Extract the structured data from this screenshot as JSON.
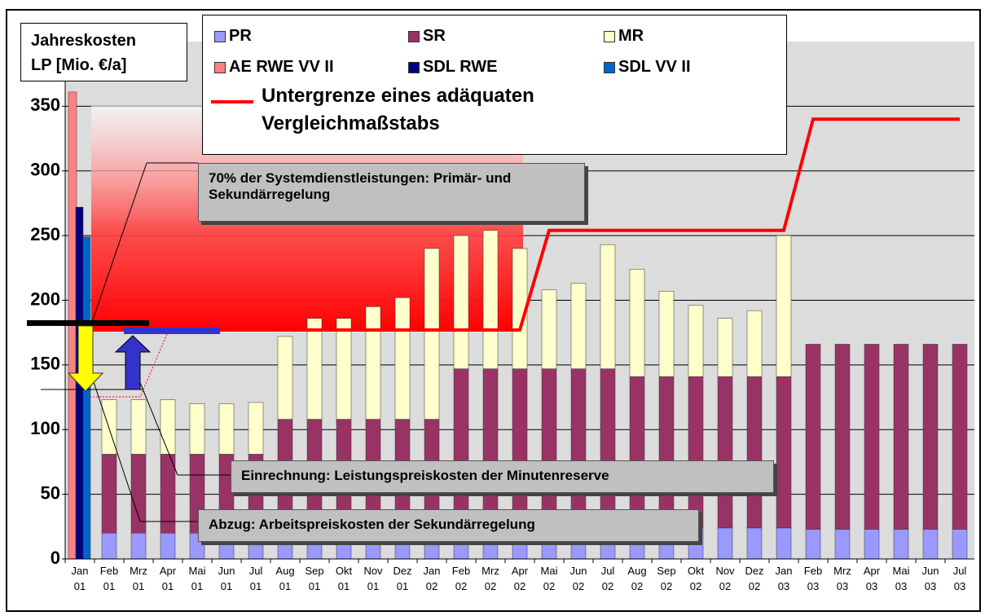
{
  "chart_data": {
    "type": "bar",
    "y_label_lines": [
      "Jahreskosten",
      "LP [Mio. €/a]"
    ],
    "categories": [
      "Jan 01",
      "Feb 01",
      "Mrz 01",
      "Apr 01",
      "Mai 01",
      "Jun 01",
      "Jul 01",
      "Aug 01",
      "Sep 01",
      "Okt 01",
      "Nov 01",
      "Dez 01",
      "Jan 02",
      "Feb 02",
      "Mrz 02",
      "Apr 02",
      "Mai 02",
      "Jun 02",
      "Jul 02",
      "Aug 02",
      "Sep 02",
      "Okt 02",
      "Nov 02",
      "Dez 02",
      "Jan 03",
      "Feb 03",
      "Mrz 03",
      "Apr 03",
      "Mai 03",
      "Jun 03",
      "Jul 03"
    ],
    "series": [
      {
        "name": "PR",
        "color": "#9999ff",
        "values": [
          null,
          20,
          20,
          20,
          20,
          20,
          20,
          20,
          20,
          20,
          20,
          20,
          20,
          20,
          20,
          20,
          20,
          20,
          20,
          20,
          20,
          24,
          24,
          24,
          24,
          23,
          23,
          23,
          23,
          23,
          23
        ]
      },
      {
        "name": "SR",
        "color": "#993366",
        "values": [
          null,
          61,
          61,
          61,
          61,
          61,
          61,
          88,
          88,
          88,
          88,
          88,
          88,
          127,
          127,
          127,
          127,
          127,
          127,
          121,
          121,
          117,
          117,
          117,
          117,
          143,
          143,
          143,
          143,
          143,
          143
        ]
      },
      {
        "name": "MR",
        "color": "#ffffcc",
        "values": [
          null,
          42,
          42,
          42,
          39,
          39,
          40,
          64,
          78,
          78,
          87,
          94,
          132,
          103,
          107,
          93,
          61,
          66,
          96,
          83,
          66,
          55,
          45,
          51,
          109,
          null,
          null,
          null,
          null,
          null,
          null
        ]
      },
      {
        "name": "AE RWE VV II",
        "color": "#ff8080",
        "values": [
          361,
          null,
          null,
          null,
          null,
          null,
          null,
          null,
          null,
          null,
          null,
          null,
          null,
          null,
          null,
          null,
          null,
          null,
          null,
          null,
          null,
          null,
          null,
          null,
          null,
          null,
          null,
          null,
          null,
          null,
          null
        ]
      },
      {
        "name": "SDL RWE",
        "color": "#000080",
        "values": [
          272,
          null,
          null,
          null,
          null,
          null,
          null,
          null,
          null,
          null,
          null,
          null,
          null,
          null,
          null,
          null,
          null,
          null,
          null,
          null,
          null,
          null,
          null,
          null,
          null,
          null,
          null,
          null,
          null,
          null,
          null
        ]
      },
      {
        "name": "SDL VV II",
        "color": "#0066cc",
        "values": [
          249,
          null,
          null,
          null,
          null,
          null,
          null,
          null,
          null,
          null,
          null,
          null,
          null,
          null,
          null,
          null,
          null,
          null,
          null,
          null,
          null,
          null,
          null,
          null,
          null,
          null,
          null,
          null,
          null,
          null,
          null
        ]
      },
      {
        "name": "Untergrenze eines adäquaten Vergleichmaßstabs",
        "type": "line",
        "color": "#ff0000",
        "values": [
          177,
          177,
          177,
          177,
          177,
          177,
          177,
          177,
          177,
          177,
          177,
          177,
          177,
          177,
          177,
          177,
          254,
          254,
          254,
          254,
          254,
          254,
          254,
          254,
          254,
          340,
          340,
          340,
          340,
          340,
          340
        ]
      }
    ],
    "ylim": [
      0,
      400
    ],
    "yticks": [
      0,
      50,
      100,
      150,
      200,
      250,
      300,
      350
    ],
    "grid": true,
    "annotations": [
      "70% der Systemdienstleistungen: Primär- und Sekundärregelung",
      "Einrechnung: Leistungspreiskosten der Minutenreserve",
      "Abzug: Arbeitspreiskosten der Sekundärregelung"
    ]
  }
}
